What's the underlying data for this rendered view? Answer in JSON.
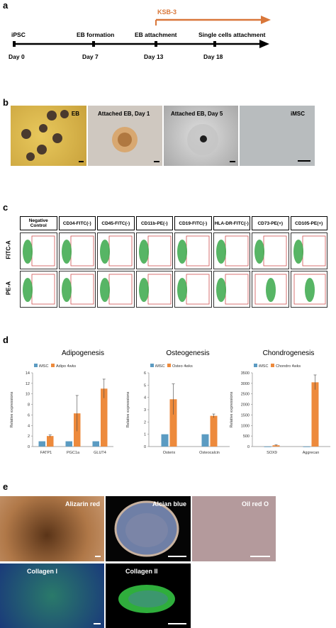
{
  "panel_labels": {
    "a": "a",
    "b": "b",
    "c": "c",
    "d": "d",
    "e": "e"
  },
  "timeline": {
    "treatment_label": "KSB-3",
    "treatment_color": "#d9773a",
    "stages": [
      "iPSC",
      "EB formation",
      "EB attachment",
      "Single cells attachment"
    ],
    "days": [
      "Day 0",
      "Day 7",
      "Day 13",
      "Day 18"
    ]
  },
  "micrographs_b": [
    "EB",
    "Attached EB, Day 1",
    "Attached EB, Day 5",
    "iMSC"
  ],
  "flow": {
    "headers": [
      "Negative Control",
      "CD34-FITC(-)",
      "CD45-FITC(-)",
      "CD11b-PE(-)",
      "CD19-FITC(-)",
      "HLA-DR-FITC(-)",
      "CD73-PE(+)",
      "CD105-PE(+)"
    ],
    "rows": [
      "FITC-A",
      "PE-A"
    ]
  },
  "chart_data": [
    {
      "type": "bar",
      "title": "Adipogenesis",
      "ylabel": "Relative expressions",
      "categories": [
        "FATP1",
        "PGC1a",
        "GLUT4"
      ],
      "series": [
        {
          "name": "iMSC",
          "values": [
            1,
            1,
            1
          ],
          "errors": [
            0,
            0,
            0
          ],
          "color": "#5b9bc2"
        },
        {
          "name": "Adipo 4wks",
          "values": [
            2.0,
            6.3,
            11.0
          ],
          "errors": [
            0.2,
            3.4,
            1.8
          ],
          "color": "#ed8a3c"
        }
      ],
      "ylim": [
        0,
        14
      ],
      "yticks": [
        "0",
        "2",
        "4",
        "6",
        "8",
        "10",
        "12",
        "14"
      ]
    },
    {
      "type": "bar",
      "title": "Osteogenesis",
      "ylabel": "Relative expressions",
      "categories": [
        "Osterix",
        "Osteocalcin"
      ],
      "series": [
        {
          "name": "iMSC",
          "values": [
            1,
            1
          ],
          "errors": [
            0,
            0
          ],
          "color": "#5b9bc2"
        },
        {
          "name": "Osteo 4wks",
          "values": [
            3.85,
            2.5
          ],
          "errors": [
            1.25,
            0.15
          ],
          "color": "#ed8a3c"
        }
      ],
      "ylim": [
        0,
        6
      ],
      "yticks": [
        "0",
        "1",
        "2",
        "3",
        "4",
        "5",
        "6"
      ]
    },
    {
      "type": "bar",
      "title": "Chondrogenesis",
      "ylabel": "Relative expressions",
      "categories": [
        "SOX9",
        "Aggrecan"
      ],
      "series": [
        {
          "name": "iMSC",
          "values": [
            1,
            1
          ],
          "errors": [
            0,
            0
          ],
          "color": "#5b9bc2"
        },
        {
          "name": "Chondro 4wks",
          "values": [
            60,
            3050
          ],
          "errors": [
            20,
            350
          ],
          "color": "#ed8a3c"
        }
      ],
      "ylim": [
        0,
        3500
      ],
      "yticks": [
        "0",
        "500",
        "1000",
        "1500",
        "2000",
        "2500",
        "3000",
        "3500"
      ]
    }
  ],
  "micrographs_e": [
    "Alizarin red",
    "Alcian blue",
    "Oil red O",
    "Collagen I",
    "Collagen II"
  ]
}
